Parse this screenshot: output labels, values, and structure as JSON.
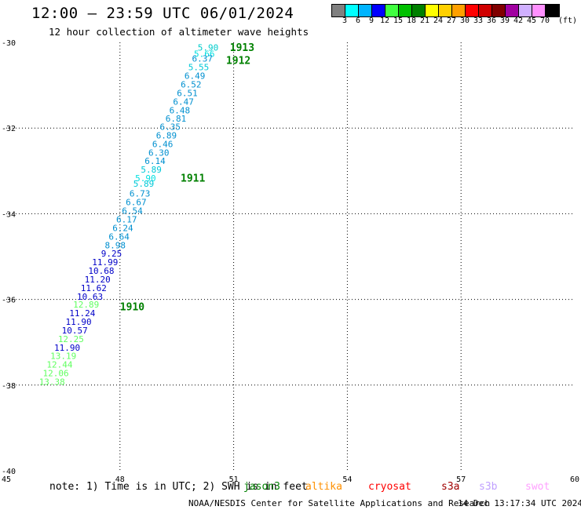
{
  "header": {
    "title": "12:00 – 23:59 UTC 06/01/2024",
    "subtitle": "12 hour collection of altimeter wave heights"
  },
  "legend": {
    "colors": [
      "#808080",
      "#00ffff",
      "#00b4ff",
      "#0000ff",
      "#40ff40",
      "#00c000",
      "#008000",
      "#ffff00",
      "#ffd000",
      "#ffa000",
      "#ff0000",
      "#d00000",
      "#800000",
      "#a000a0",
      "#d0b0ff",
      "#ff90ff",
      "#000000"
    ],
    "labels": [
      "3",
      "6",
      "9",
      "12",
      "15",
      "18",
      "21",
      "24",
      "27",
      "30",
      "33",
      "36",
      "39",
      "42",
      "45",
      "70"
    ],
    "unit": "(ft)"
  },
  "map": {
    "lon_range": [
      45,
      60
    ],
    "lat_range": [
      -40,
      -30
    ],
    "lon_ticks": [
      "45",
      "48",
      "51",
      "54",
      "57",
      "60"
    ],
    "lat_ticks": [
      "-30",
      "-32",
      "-34",
      "-36",
      "-38",
      "-40"
    ],
    "observations": [
      {
        "lon": 50.6,
        "lat": -30.12,
        "v": "5.90",
        "c": "#00cccc"
      },
      {
        "lon": 50.5,
        "lat": -30.27,
        "v": "5.66",
        "c": "#00e0e0"
      },
      {
        "lon": 50.45,
        "lat": -30.38,
        "v": "6.37",
        "c": "#0090d0"
      },
      {
        "lon": 50.35,
        "lat": -30.58,
        "v": "5.55",
        "c": "#00c8d8"
      },
      {
        "lon": 50.25,
        "lat": -30.78,
        "v": "6.49",
        "c": "#0090d0"
      },
      {
        "lon": 50.15,
        "lat": -30.98,
        "v": "6.52",
        "c": "#0090d0"
      },
      {
        "lon": 50.05,
        "lat": -31.18,
        "v": "6.51",
        "c": "#0090d0"
      },
      {
        "lon": 49.95,
        "lat": -31.38,
        "v": "6.47",
        "c": "#0090d0"
      },
      {
        "lon": 49.85,
        "lat": -31.58,
        "v": "6.48",
        "c": "#0090d0"
      },
      {
        "lon": 49.75,
        "lat": -31.78,
        "v": "6.81",
        "c": "#0090d0"
      },
      {
        "lon": 49.6,
        "lat": -31.97,
        "v": "6.35",
        "c": "#0090d0"
      },
      {
        "lon": 49.5,
        "lat": -32.17,
        "v": "6.89",
        "c": "#0090d0"
      },
      {
        "lon": 49.4,
        "lat": -32.37,
        "v": "6.46",
        "c": "#0090d0"
      },
      {
        "lon": 49.3,
        "lat": -32.57,
        "v": "6.30",
        "c": "#0090d0"
      },
      {
        "lon": 49.2,
        "lat": -32.77,
        "v": "6.14",
        "c": "#0090d0"
      },
      {
        "lon": 49.1,
        "lat": -32.97,
        "v": "5.89",
        "c": "#00c8d8"
      },
      {
        "lon": 48.95,
        "lat": -33.17,
        "v": "5.90",
        "c": "#00e0e0"
      },
      {
        "lon": 48.9,
        "lat": -33.3,
        "v": "5.89",
        "c": "#00c8d8"
      },
      {
        "lon": 48.8,
        "lat": -33.53,
        "v": "6.73",
        "c": "#0090d0"
      },
      {
        "lon": 48.7,
        "lat": -33.73,
        "v": "6.67",
        "c": "#0090d0"
      },
      {
        "lon": 48.6,
        "lat": -33.93,
        "v": "6.54",
        "c": "#0090d0"
      },
      {
        "lon": 48.45,
        "lat": -34.13,
        "v": "6.17",
        "c": "#0090d0"
      },
      {
        "lon": 48.35,
        "lat": -34.33,
        "v": "6.24",
        "c": "#0090d0"
      },
      {
        "lon": 48.25,
        "lat": -34.53,
        "v": "6.64",
        "c": "#0090d0"
      },
      {
        "lon": 48.15,
        "lat": -34.73,
        "v": "8.98",
        "c": "#0090d0"
      },
      {
        "lon": 48.05,
        "lat": -34.93,
        "v": "9.25",
        "c": "#0000c8"
      },
      {
        "lon": 47.95,
        "lat": -35.13,
        "v": "11.99",
        "c": "#0000c8"
      },
      {
        "lon": 47.85,
        "lat": -35.33,
        "v": "10.68",
        "c": "#0000c8"
      },
      {
        "lon": 47.75,
        "lat": -35.53,
        "v": "11.20",
        "c": "#0000c8"
      },
      {
        "lon": 47.65,
        "lat": -35.73,
        "v": "11.62",
        "c": "#0000c8"
      },
      {
        "lon": 47.55,
        "lat": -35.93,
        "v": "10.63",
        "c": "#0000c8"
      },
      {
        "lon": 47.45,
        "lat": -36.12,
        "v": "12.89",
        "c": "#60ff60"
      },
      {
        "lon": 47.35,
        "lat": -36.32,
        "v": "11.24",
        "c": "#0000c8"
      },
      {
        "lon": 47.25,
        "lat": -36.52,
        "v": "11.90",
        "c": "#0000c8"
      },
      {
        "lon": 47.15,
        "lat": -36.72,
        "v": "10.57",
        "c": "#0000c8"
      },
      {
        "lon": 47.05,
        "lat": -36.92,
        "v": "12.25",
        "c": "#60ff60"
      },
      {
        "lon": 46.95,
        "lat": -37.12,
        "v": "11.90",
        "c": "#0000c8"
      },
      {
        "lon": 46.85,
        "lat": -37.32,
        "v": "13.19",
        "c": "#60ff60"
      },
      {
        "lon": 46.75,
        "lat": -37.52,
        "v": "12.44",
        "c": "#60ff60"
      },
      {
        "lon": 46.65,
        "lat": -37.72,
        "v": "12.06",
        "c": "#60ff60"
      },
      {
        "lon": 46.55,
        "lat": -37.92,
        "v": "13.38",
        "c": "#60ff60"
      }
    ],
    "time_labels": [
      {
        "lon": 50.9,
        "lat": -30.13,
        "t": "1913"
      },
      {
        "lon": 50.8,
        "lat": -30.43,
        "t": "1912"
      },
      {
        "lon": 49.6,
        "lat": -33.18,
        "t": "1911"
      },
      {
        "lon": 48.0,
        "lat": -36.18,
        "t": "1910"
      }
    ]
  },
  "footer": {
    "note": "note: 1) Time is in UTC; 2) SWH is in feet",
    "satellites": [
      {
        "name": "jason3",
        "color": "#008000"
      },
      {
        "name": "altika",
        "color": "#ff9000"
      },
      {
        "name": "cryosat",
        "color": "#ff0000"
      },
      {
        "name": "s3a",
        "color": "#a00000"
      },
      {
        "name": "s3b",
        "color": "#c0a0ff"
      },
      {
        "name": "swot",
        "color": "#ffa0ff"
      }
    ],
    "credit": "NOAA/NESDIS Center for Satellite Applications and Research",
    "timestamp": "14 Dec 13:17:34 UTC 2024"
  }
}
